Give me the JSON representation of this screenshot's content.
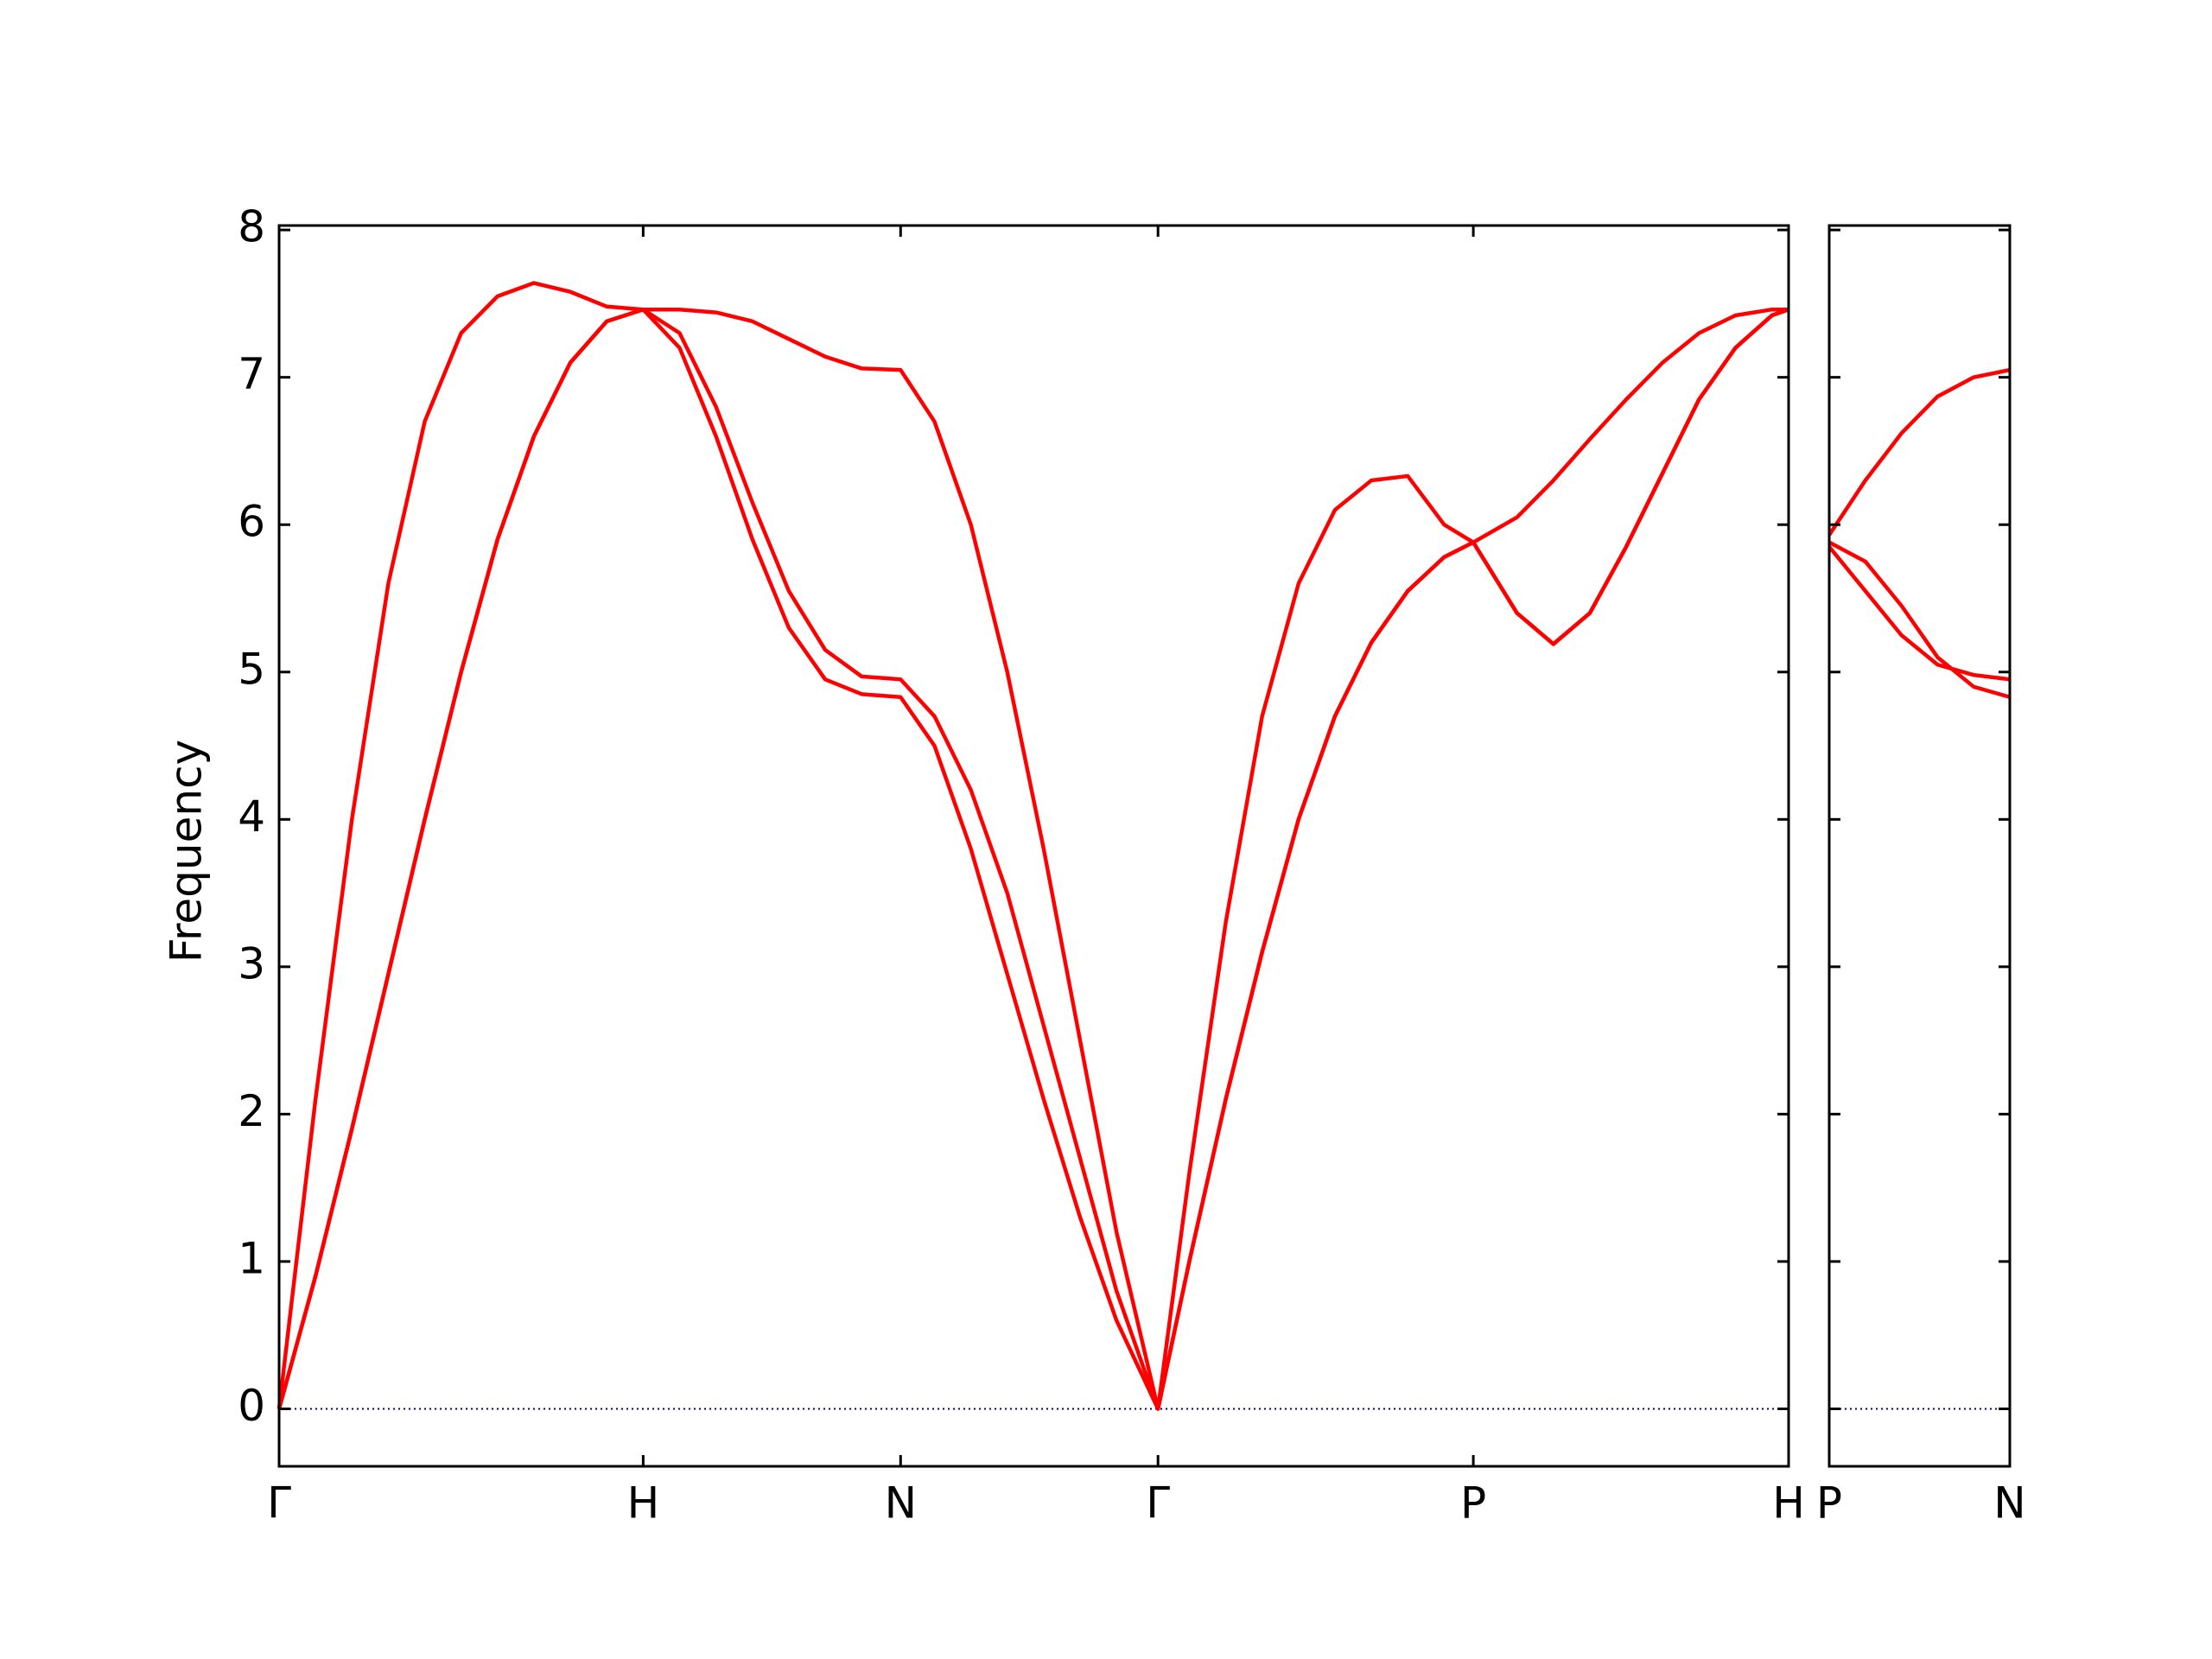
{
  "chart_data": [
    {
      "type": "line",
      "ylabel": "Frequency",
      "x": [
        0,
        0.1,
        0.2,
        0.3,
        0.4,
        0.5,
        0.6,
        0.7,
        0.8,
        0.9,
        1,
        1.1,
        1.2,
        1.3,
        1.4,
        1.5,
        1.6,
        1.707,
        1.8,
        1.9,
        2.0,
        2.1,
        2.2,
        2.3,
        2.414,
        2.5,
        2.6,
        2.7,
        2.8,
        2.9,
        3.0,
        3.1,
        3.2,
        3.28,
        3.4,
        3.5,
        3.6,
        3.7,
        3.8,
        3.9,
        4.0,
        4.1,
        4.146
      ],
      "xlim": [
        0,
        4.146
      ],
      "xticks": [
        {
          "value": 0,
          "label": "Γ"
        },
        {
          "value": 1,
          "label": "H"
        },
        {
          "value": 1.707,
          "label": "N"
        },
        {
          "value": 2.414,
          "label": "Γ"
        },
        {
          "value": 3.28,
          "label": "P"
        },
        {
          "value": 4.146,
          "label": "H"
        }
      ],
      "ylim": [
        -0.39,
        8.03
      ],
      "yticks": [
        0,
        1,
        2,
        3,
        4,
        5,
        6,
        7,
        8
      ],
      "hline": 0,
      "hline_color": "#00008b",
      "series": [
        {
          "color": "#ff0000",
          "values": [
            0,
            0.9,
            1.9,
            2.95,
            4.0,
            5.0,
            5.9,
            6.6,
            7.1,
            7.38,
            7.46,
            7.2,
            6.6,
            5.9,
            5.3,
            4.95,
            4.85,
            4.83,
            4.5,
            3.8,
            2.95,
            2.1,
            1.3,
            0.6,
            0,
            1.0,
            2.1,
            3.1,
            4.0,
            4.7,
            5.2,
            5.55,
            5.78,
            5.88,
            5.4,
            5.19,
            5.4,
            5.85,
            6.35,
            6.85,
            7.2,
            7.42,
            7.46
          ]
        },
        {
          "color": "#ff0000",
          "values": [
            0,
            0.9,
            1.9,
            2.95,
            4.0,
            5.0,
            5.9,
            6.6,
            7.1,
            7.38,
            7.46,
            7.3,
            6.8,
            6.15,
            5.55,
            5.15,
            4.97,
            4.95,
            4.7,
            4.2,
            3.5,
            2.6,
            1.7,
            0.8,
            0,
            1.0,
            2.1,
            3.1,
            4.0,
            4.7,
            5.2,
            5.55,
            5.78,
            5.88,
            6.05,
            6.3,
            6.58,
            6.85,
            7.1,
            7.3,
            7.42,
            7.46,
            7.46
          ]
        },
        {
          "color": "#ff0000",
          "values": [
            0,
            2.1,
            4.0,
            5.6,
            6.7,
            7.3,
            7.55,
            7.64,
            7.58,
            7.48,
            7.46,
            7.46,
            7.44,
            7.38,
            7.26,
            7.14,
            7.06,
            7.05,
            6.7,
            6.0,
            5.0,
            3.8,
            2.5,
            1.2,
            0,
            1.6,
            3.3,
            4.7,
            5.6,
            6.1,
            6.3,
            6.33,
            6.0,
            5.88,
            5.4,
            5.19,
            5.4,
            5.85,
            6.35,
            6.85,
            7.2,
            7.42,
            7.46
          ]
        }
      ]
    },
    {
      "type": "line",
      "x": [
        0,
        0.1,
        0.2,
        0.3,
        0.4,
        0.5
      ],
      "xlim": [
        0,
        0.5
      ],
      "xticks": [
        {
          "value": 0,
          "label": "P"
        },
        {
          "value": 0.5,
          "label": "N"
        }
      ],
      "ylim": [
        -0.39,
        8.03
      ],
      "yticks": [
        0,
        1,
        2,
        3,
        4,
        5,
        6,
        7,
        8
      ],
      "ytick_labels": false,
      "hline": 0,
      "hline_color": "#00008b",
      "series": [
        {
          "color": "#ff0000",
          "values": [
            5.93,
            6.3,
            6.62,
            6.87,
            7.0,
            7.05
          ]
        },
        {
          "color": "#ff0000",
          "values": [
            5.88,
            5.75,
            5.45,
            5.1,
            4.9,
            4.83
          ]
        },
        {
          "color": "#ff0000",
          "values": [
            5.85,
            5.55,
            5.25,
            5.05,
            4.98,
            4.95
          ]
        }
      ]
    }
  ]
}
